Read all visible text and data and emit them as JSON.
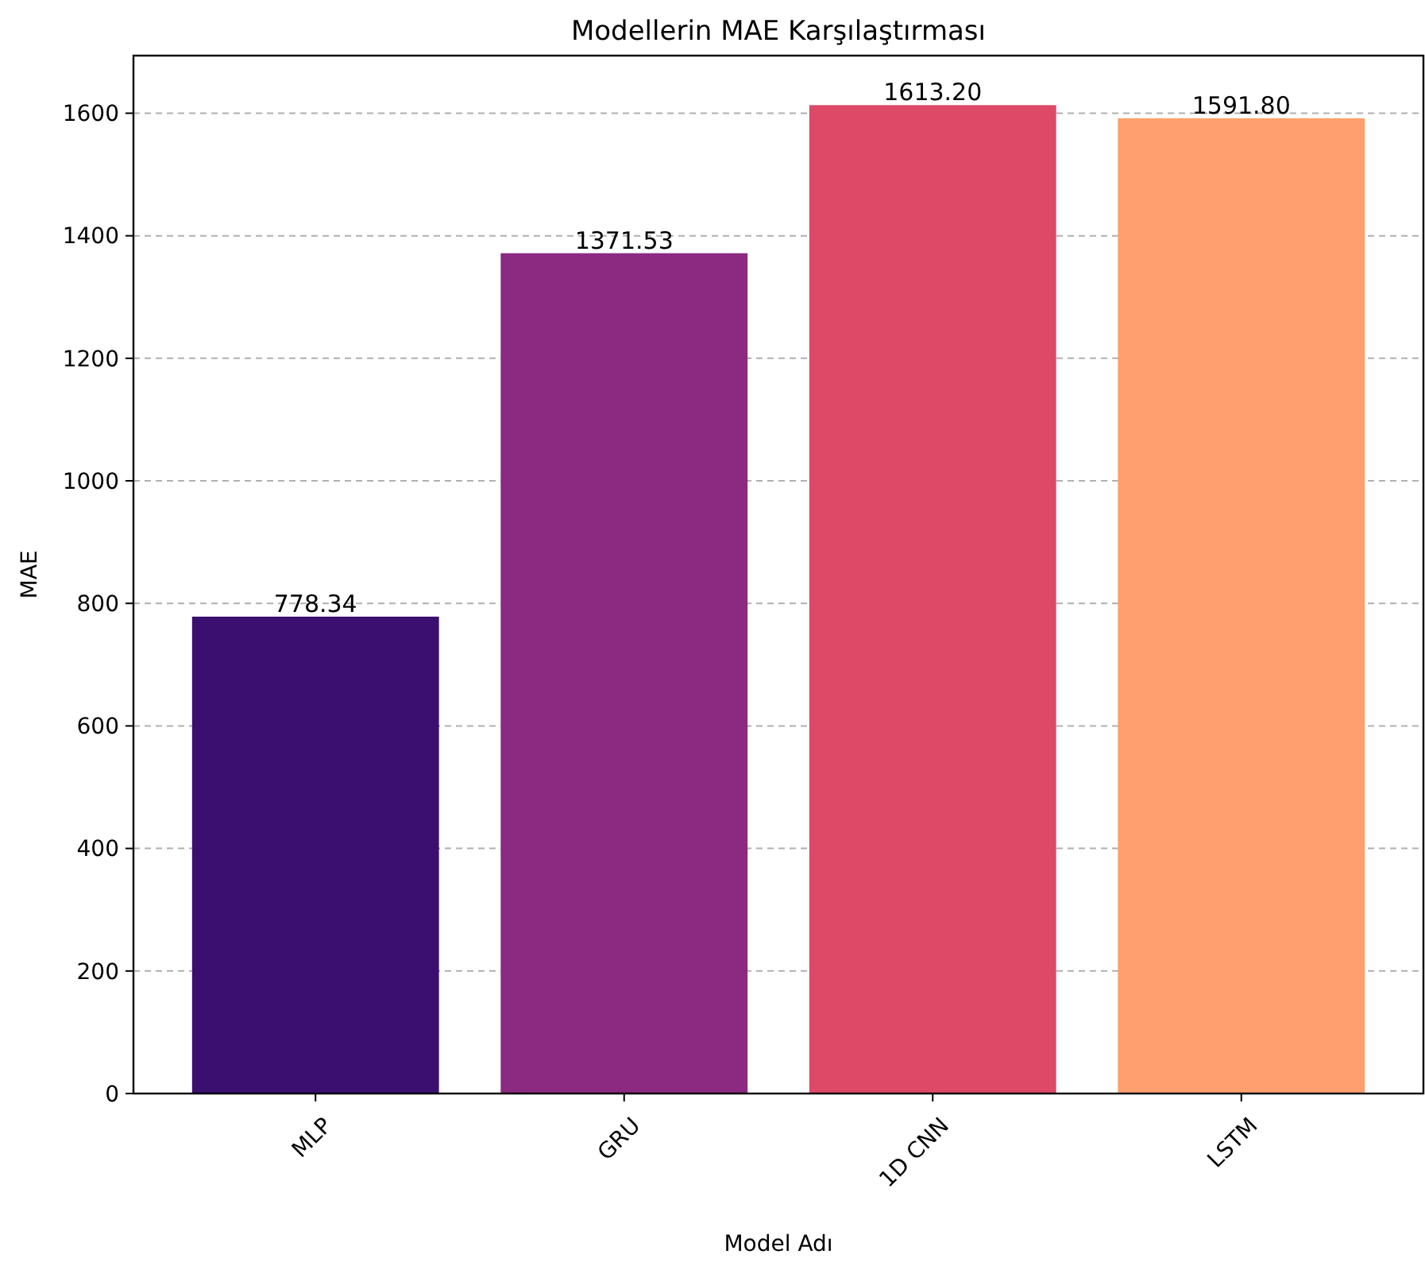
{
  "chart_data": {
    "type": "bar",
    "title": "Modellerin MAE Karşılaştırması",
    "xlabel": "Model Adı",
    "ylabel": "MAE",
    "categories": [
      "MLP",
      "GRU",
      "1D CNN",
      "LSTM"
    ],
    "values": [
      778.34,
      1371.53,
      1613.2,
      1591.8
    ],
    "value_labels": [
      "778.34",
      "1371.53",
      "1613.20",
      "1591.80"
    ],
    "colors": [
      "#3b0f70",
      "#8c2981",
      "#de4968",
      "#fe9f6d"
    ],
    "ylim": [
      0,
      1694
    ],
    "yticks": [
      0,
      200,
      400,
      600,
      800,
      1000,
      1200,
      1400,
      1600
    ],
    "grid": "y"
  }
}
